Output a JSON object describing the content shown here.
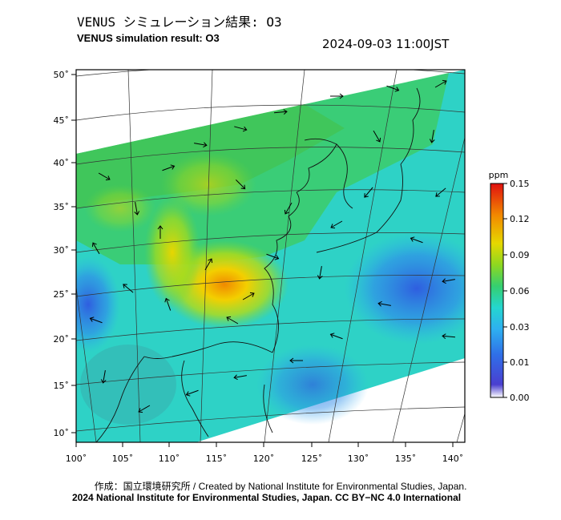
{
  "header": {
    "title_jp": "VENUS シミュレーション結果: O3",
    "title_en": "VENUS simulation result: O3",
    "timestamp": "2024-09-03 11:00JST"
  },
  "map": {
    "lon_ticks": [
      "100˚",
      "105˚",
      "110˚",
      "115˚",
      "120˚",
      "125˚",
      "130˚",
      "135˚",
      "140˚"
    ],
    "lat_ticks": [
      "50˚",
      "45˚",
      "40˚",
      "35˚",
      "30˚",
      "25˚",
      "20˚",
      "15˚",
      "10˚"
    ],
    "peak_location": "Southeast China around 116˚E, 27˚N",
    "colors": {
      "frame": "#000000",
      "coastline": "#111111",
      "graticule": "#333333"
    }
  },
  "colorbar": {
    "unit": "ppm",
    "tick_labels": [
      "0.15",
      "0.12",
      "0.09",
      "0.06",
      "0.03",
      "0.01",
      "0.00"
    ],
    "colors": [
      "#ffffff",
      "#3a50d8",
      "#2e9cf0",
      "#25d3d8",
      "#38cf6a",
      "#9adc1e",
      "#f2d400",
      "#f28200",
      "#e01010"
    ]
  },
  "footer": {
    "credit": "作成：国立環境研究所 / Created by National Institute for Environmental Studies, Japan.",
    "copyright": "2024 National Institute for Environmental Studies, Japan. CC BY−NC 4.0 International"
  }
}
